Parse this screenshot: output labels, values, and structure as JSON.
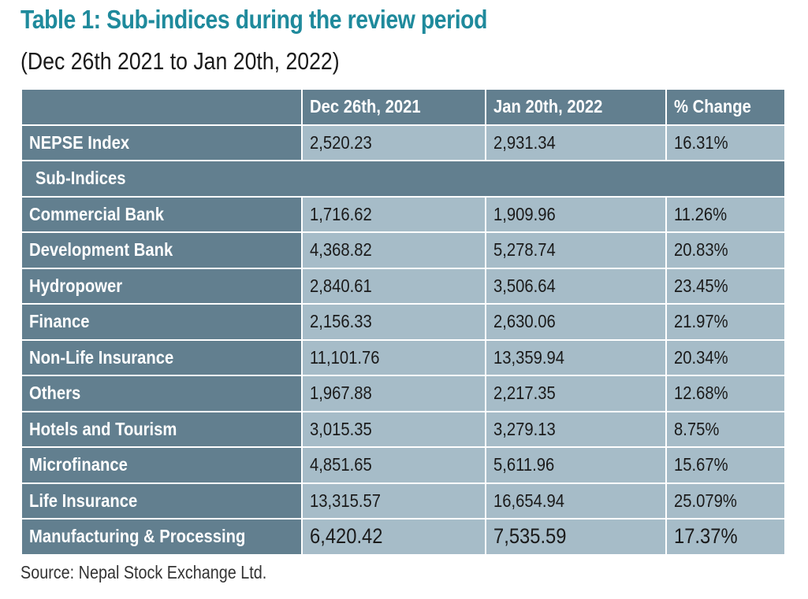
{
  "title": "Table 1: Sub-indices during the review period",
  "subtitle": "(Dec 26th 2021 to Jan 20th, 2022)",
  "table": {
    "headers": [
      "",
      "Dec 26th, 2021",
      "Jan 20th, 2022",
      "% Change"
    ],
    "index_row": {
      "label": "NEPSE Index",
      "dec": "2,520.23",
      "jan": "2,931.34",
      "change": "16.31%"
    },
    "section_label": "Sub-Indices",
    "rows": [
      {
        "label": "Commercial Bank",
        "dec": "1,716.62",
        "jan": "1,909.96",
        "change": "11.26%"
      },
      {
        "label": "Development Bank",
        "dec": "4,368.82",
        "jan": "5,278.74",
        "change": "20.83%"
      },
      {
        "label": "Hydropower",
        "dec": "2,840.61",
        "jan": "3,506.64",
        "change": "23.45%"
      },
      {
        "label": "Finance",
        "dec": "2,156.33",
        "jan": "2,630.06",
        "change": "21.97%"
      },
      {
        "label": "Non-Life Insurance",
        "dec": "11,101.76",
        "jan": "13,359.94",
        "change": "20.34%"
      },
      {
        "label": "Others",
        "dec": "1,967.88",
        "jan": "2,217.35",
        "change": "12.68%"
      },
      {
        "label": "Hotels and Tourism",
        "dec": "3,015.35",
        "jan": "3,279.13",
        "change": "8.75%"
      },
      {
        "label": "Microfinance",
        "dec": "4,851.65",
        "jan": "5,611.96",
        "change": "15.67%"
      },
      {
        "label": "Life Insurance",
        "dec": "13,315.57",
        "jan": "16,654.94",
        "change": "25.079%"
      },
      {
        "label": "Manufacturing & Processing",
        "dec": "6,420.42",
        "jan": "7,535.59",
        "change": "17.37%"
      }
    ]
  },
  "source": "Source: Nepal Stock Exchange Ltd.",
  "colors": {
    "title": "#1f8a9c",
    "header_bg": "#627f8f",
    "cell_bg": "#a6bcc8"
  }
}
